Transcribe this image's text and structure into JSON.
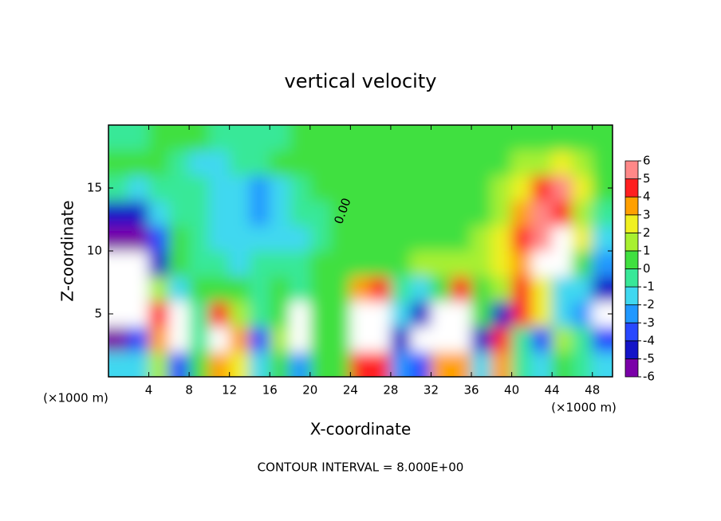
{
  "chart_data": {
    "type": "heatmap",
    "title": "vertical velocity",
    "x_label": "X-coordinate",
    "y_label": "Z-coordinate",
    "x_unit": "(×1000 m)",
    "y_unit": "(×1000 m)",
    "footer": "CONTOUR INTERVAL = 8.000E+00",
    "contour_label": "0.00",
    "xlim": [
      0,
      50
    ],
    "ylim": [
      0,
      20
    ],
    "xticks": [
      4,
      8,
      12,
      16,
      20,
      24,
      28,
      32,
      36,
      40,
      44,
      48
    ],
    "yticks": [
      5,
      10,
      15
    ],
    "x": [
      1,
      3,
      5,
      7,
      9,
      11,
      13,
      15,
      17,
      19,
      21,
      23,
      25,
      27,
      29,
      31,
      33,
      35,
      37,
      39,
      41,
      43,
      45,
      47,
      49
    ],
    "y": [
      1,
      3,
      5,
      7,
      9,
      11,
      13,
      15,
      17,
      19
    ],
    "values": [
      [
        -1,
        -1,
        2,
        -3,
        0.5,
        4,
        3,
        -1,
        1,
        -2,
        0.5,
        0.5,
        5,
        5,
        -2,
        -3,
        4,
        4,
        -1,
        4,
        0,
        -1,
        1,
        0,
        -1
      ],
      [
        -6,
        -3,
        4,
        -7,
        0,
        7,
        4,
        -3,
        2,
        -7,
        0.5,
        0.5,
        7,
        7,
        -4,
        -7,
        7,
        7,
        -4,
        5,
        0,
        -3,
        2,
        0,
        -3
      ],
      [
        -7,
        -7,
        4.5,
        -6.5,
        0,
        4.5,
        2,
        0,
        0.5,
        -6.5,
        0.5,
        0.5,
        7,
        7,
        -1.5,
        -4,
        7,
        7,
        0.5,
        -4,
        5,
        3,
        -1,
        -2,
        -6.5
      ],
      [
        -7,
        -7,
        2,
        -1,
        0.5,
        1,
        0.5,
        0,
        0.5,
        0,
        0.5,
        0.5,
        4,
        4.5,
        0,
        -1,
        1,
        4.5,
        0.5,
        1.5,
        4.5,
        3,
        -1,
        -1.5,
        -4
      ],
      [
        -7,
        -7,
        -4,
        1,
        0,
        -0.5,
        -1,
        -0.5,
        -0.5,
        0,
        0.5,
        0.5,
        1,
        1,
        1,
        1.5,
        1.5,
        1.5,
        2,
        3,
        4,
        6.5,
        6.5,
        1,
        -2
      ],
      [
        -5,
        -5.5,
        -3,
        0.5,
        0,
        -1,
        -1.5,
        -1.5,
        -1,
        -1,
        -0.5,
        0.5,
        0.5,
        0.5,
        0.5,
        1,
        1,
        1,
        1.5,
        2.5,
        4.5,
        5.5,
        6.5,
        3,
        -1
      ],
      [
        -4,
        -4,
        -1,
        0,
        -0.5,
        -1.5,
        -1,
        -2,
        -1.5,
        -0.5,
        0,
        0.5,
        0.5,
        0.5,
        0.5,
        0.5,
        0.5,
        0.5,
        1,
        2,
        4,
        5.5,
        5,
        2,
        0
      ],
      [
        0,
        -1,
        -0.5,
        0,
        -0.5,
        -1,
        -1.5,
        -2.5,
        -1,
        0,
        0.5,
        0.5,
        0.5,
        0.5,
        0.5,
        0.5,
        0.5,
        0.5,
        0.5,
        1.5,
        3,
        4.5,
        5.5,
        3,
        0.5
      ],
      [
        0.5,
        0.5,
        0.5,
        -0.5,
        -1,
        -1,
        -0.5,
        0,
        0.5,
        0.5,
        0.5,
        0.5,
        0.5,
        0.5,
        0.5,
        0.5,
        0.5,
        0.5,
        0.5,
        1,
        1.5,
        2,
        2.5,
        1.5,
        0.5
      ],
      [
        0,
        0,
        0.5,
        0.5,
        0.5,
        0,
        -0.5,
        -0.5,
        0,
        0.5,
        0.5,
        0.5,
        0.5,
        0.5,
        0.5,
        0.5,
        0.5,
        0.5,
        0.5,
        0.5,
        0.5,
        0.5,
        1,
        0.5,
        0.5
      ]
    ],
    "colorbar": {
      "levels": [
        -6,
        -5,
        -4,
        -3,
        -2,
        -1,
        0,
        1,
        2,
        3,
        4,
        5,
        6
      ],
      "colors": [
        "#7a00a8",
        "#1414c8",
        "#2848ff",
        "#2098ff",
        "#40d8f0",
        "#38e898",
        "#40e040",
        "#a8f030",
        "#f0f020",
        "#ffa000",
        "#ff2020",
        "#ff8888"
      ],
      "out_of_range_color": "#ffffff"
    }
  }
}
